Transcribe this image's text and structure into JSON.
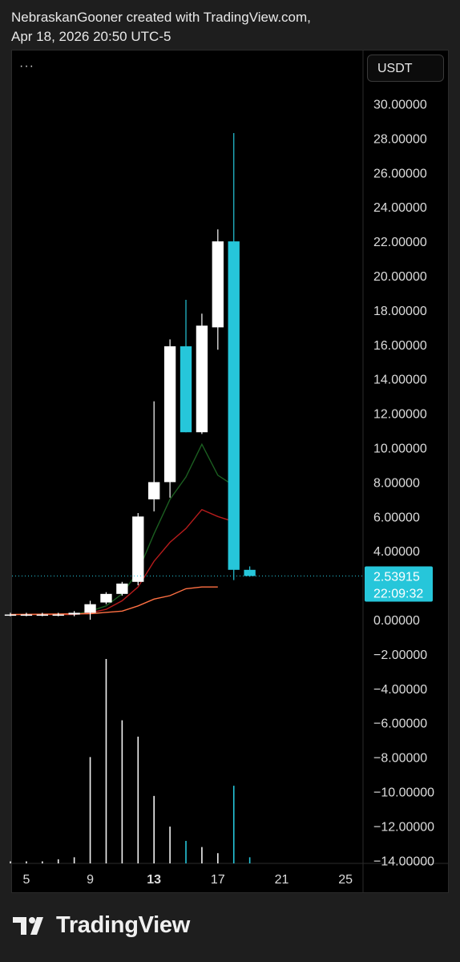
{
  "header": {
    "line1": "NebraskanGooner created with TradingView.com,",
    "line2": "Apr 18, 2026 20:50 UTC-5"
  },
  "toolbar": {
    "menu_label": "···",
    "currency": "USDT"
  },
  "footer": {
    "brand": "TradingView",
    "logo_icon": "tradingview-logo-icon"
  },
  "colors": {
    "up": "#ffffff",
    "down": "#26c6da",
    "ma_fast": "#1b5e20",
    "ma_mid": "#b71c1c",
    "ma_slow": "#ff7043",
    "price_tag": "#26c6da"
  },
  "chart_data": {
    "type": "candlestick",
    "price_axis": {
      "ticks": [
        "30.00000",
        "28.00000",
        "26.00000",
        "24.00000",
        "22.00000",
        "20.00000",
        "18.00000",
        "16.00000",
        "14.00000",
        "12.00000",
        "10.00000",
        "8.00000",
        "6.00000",
        "4.00000",
        "2.00000",
        "0.00000",
        "−2.00000",
        "−4.00000",
        "−6.00000",
        "−8.00000",
        "−10.00000",
        "−12.00000",
        "−14.00000"
      ],
      "ylim": [
        -14,
        30
      ]
    },
    "time_axis": {
      "ticks": [
        {
          "day": 5,
          "label": "5",
          "bold": false
        },
        {
          "day": 9,
          "label": "9",
          "bold": false
        },
        {
          "day": 13,
          "label": "13",
          "bold": true
        },
        {
          "day": 17,
          "label": "17",
          "bold": false
        },
        {
          "day": 21,
          "label": "21",
          "bold": false
        },
        {
          "day": 25,
          "label": "25",
          "bold": false
        }
      ],
      "xlim": [
        4.1,
        26.1
      ]
    },
    "last_price": {
      "value": 2.53915,
      "label": "2.53915",
      "countdown": "22:09:32"
    },
    "candles": [
      {
        "day": 4,
        "open": 0.3,
        "high": 0.4,
        "low": 0.2,
        "close": 0.3
      },
      {
        "day": 5,
        "open": 0.3,
        "high": 0.4,
        "low": 0.2,
        "close": 0.3
      },
      {
        "day": 6,
        "open": 0.3,
        "high": 0.4,
        "low": 0.2,
        "close": 0.3
      },
      {
        "day": 7,
        "open": 0.3,
        "high": 0.4,
        "low": 0.2,
        "close": 0.3
      },
      {
        "day": 8,
        "open": 0.3,
        "high": 0.5,
        "low": 0.2,
        "close": 0.4
      },
      {
        "day": 9,
        "open": 0.4,
        "high": 1.1,
        "low": 0.0,
        "close": 0.9
      },
      {
        "day": 10,
        "open": 1.0,
        "high": 1.6,
        "low": 0.9,
        "close": 1.5
      },
      {
        "day": 11,
        "open": 1.5,
        "high": 2.2,
        "low": 1.4,
        "close": 2.1
      },
      {
        "day": 12,
        "open": 2.2,
        "high": 6.2,
        "low": 2.0,
        "close": 6.0
      },
      {
        "day": 13,
        "open": 7.0,
        "high": 12.7,
        "low": 6.3,
        "close": 8.0
      },
      {
        "day": 14,
        "open": 8.0,
        "high": 16.3,
        "low": 7.1,
        "close": 15.9
      },
      {
        "day": 15,
        "open": 15.9,
        "high": 18.6,
        "low": 10.9,
        "close": 10.9
      },
      {
        "day": 16,
        "open": 10.9,
        "high": 17.8,
        "low": 10.8,
        "close": 17.1
      },
      {
        "day": 17,
        "open": 17.0,
        "high": 22.7,
        "low": 15.7,
        "close": 22.0
      },
      {
        "day": 18,
        "open": 22.0,
        "high": 28.3,
        "low": 2.3,
        "close": 2.9
      },
      {
        "day": 19,
        "open": 2.9,
        "high": 3.1,
        "low": 2.5,
        "close": 2.54
      }
    ],
    "volume": [
      {
        "day": 4,
        "value": 0.01,
        "dir": "up"
      },
      {
        "day": 5,
        "value": 0.01,
        "dir": "up"
      },
      {
        "day": 6,
        "value": 0.01,
        "dir": "up"
      },
      {
        "day": 7,
        "value": 0.02,
        "dir": "up"
      },
      {
        "day": 8,
        "value": 0.03,
        "dir": "up"
      },
      {
        "day": 9,
        "value": 0.52,
        "dir": "up"
      },
      {
        "day": 10,
        "value": 1.0,
        "dir": "up"
      },
      {
        "day": 11,
        "value": 0.7,
        "dir": "up"
      },
      {
        "day": 12,
        "value": 0.62,
        "dir": "up"
      },
      {
        "day": 13,
        "value": 0.33,
        "dir": "up"
      },
      {
        "day": 14,
        "value": 0.18,
        "dir": "up"
      },
      {
        "day": 15,
        "value": 0.11,
        "dir": "down"
      },
      {
        "day": 16,
        "value": 0.08,
        "dir": "up"
      },
      {
        "day": 17,
        "value": 0.05,
        "dir": "up"
      },
      {
        "day": 18,
        "value": 0.38,
        "dir": "down"
      },
      {
        "day": 19,
        "value": 0.03,
        "dir": "down"
      }
    ],
    "moving_averages": [
      {
        "color_key": "ma_fast",
        "points": [
          [
            4,
            0.3
          ],
          [
            8,
            0.3
          ],
          [
            9,
            0.5
          ],
          [
            10,
            0.8
          ],
          [
            11,
            1.5
          ],
          [
            12,
            2.8
          ],
          [
            13,
            5.0
          ],
          [
            14,
            7.0
          ],
          [
            15,
            8.3
          ],
          [
            16,
            10.2
          ],
          [
            17,
            8.4
          ],
          [
            18,
            7.8
          ]
        ]
      },
      {
        "color_key": "ma_mid",
        "points": [
          [
            4,
            0.3
          ],
          [
            8,
            0.3
          ],
          [
            9,
            0.4
          ],
          [
            10,
            0.6
          ],
          [
            11,
            1.1
          ],
          [
            12,
            1.9
          ],
          [
            13,
            3.4
          ],
          [
            14,
            4.5
          ],
          [
            15,
            5.3
          ],
          [
            16,
            6.4
          ],
          [
            17,
            6.0
          ],
          [
            18,
            5.7
          ]
        ]
      },
      {
        "color_key": "ma_slow",
        "points": [
          [
            4,
            0.3
          ],
          [
            9,
            0.35
          ],
          [
            11,
            0.5
          ],
          [
            12,
            0.8
          ],
          [
            13,
            1.2
          ],
          [
            14,
            1.4
          ],
          [
            15,
            1.8
          ],
          [
            16,
            1.9
          ],
          [
            17,
            1.9
          ]
        ]
      }
    ]
  }
}
